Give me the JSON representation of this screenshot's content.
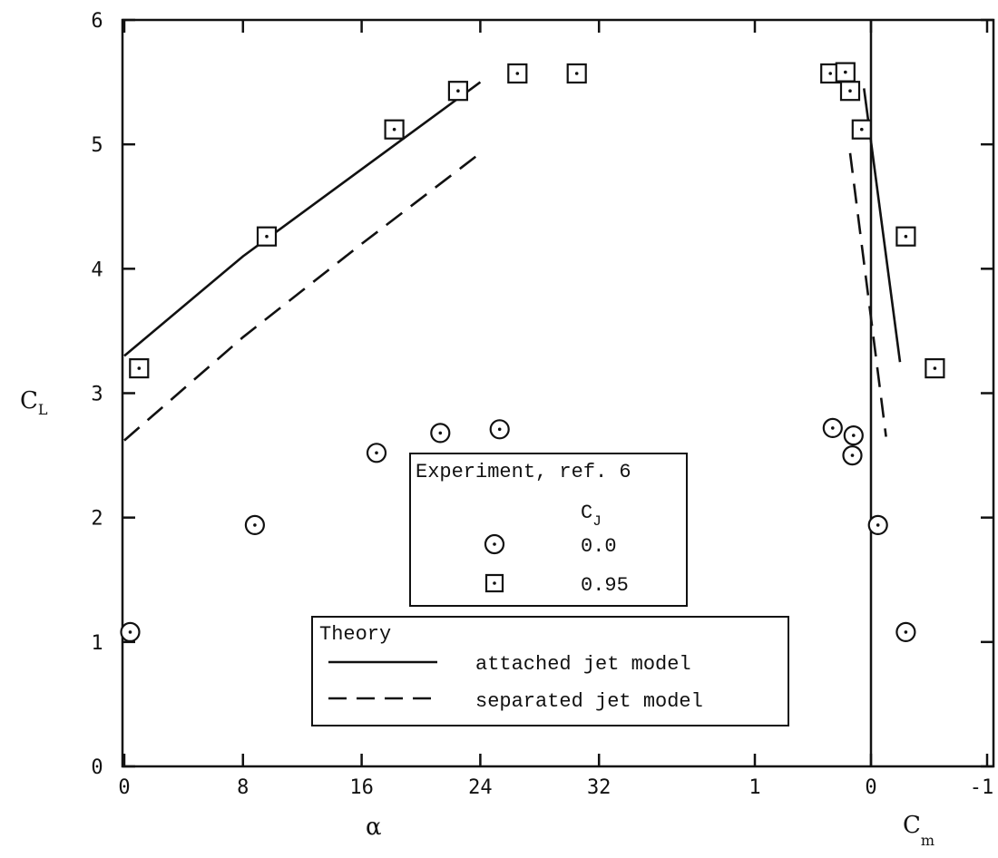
{
  "chart_data": {
    "type": "scatter",
    "y_axis": {
      "label": "C",
      "label_sub": "L",
      "range": [
        0,
        6
      ],
      "ticks": [
        "0",
        "1",
        "2",
        "3",
        "4",
        "5",
        "6"
      ]
    },
    "x_axis_alpha": {
      "label": "α",
      "range": [
        0,
        40
      ],
      "ticks": [
        "0",
        "8",
        "16",
        "24",
        "32"
      ]
    },
    "x_axis_cm": {
      "label": "C",
      "label_sub": "m",
      "range": [
        1,
        -1
      ],
      "ticks": [
        "1",
        "0",
        "-1"
      ]
    },
    "grid": false,
    "series": [
      {
        "name": "0.0",
        "panel": "alpha",
        "marker": "circle-dot",
        "points": [
          [
            0.4,
            1.08
          ],
          [
            8.8,
            1.94
          ],
          [
            17,
            2.52
          ],
          [
            21.3,
            2.68
          ],
          [
            25.3,
            2.71
          ]
        ]
      },
      {
        "name": "0.95",
        "panel": "alpha",
        "marker": "square-dot",
        "points": [
          [
            1,
            3.2
          ],
          [
            9.6,
            4.26
          ],
          [
            18.2,
            5.12
          ],
          [
            22.5,
            5.43
          ],
          [
            26.5,
            5.57
          ],
          [
            30.5,
            5.57
          ]
        ]
      },
      {
        "name": "0.0",
        "panel": "cm",
        "marker": "circle-dot",
        "points": [
          [
            0.33,
            2.72
          ],
          [
            0.15,
            2.66
          ],
          [
            0.16,
            2.5
          ],
          [
            -0.06,
            1.94
          ],
          [
            -0.3,
            1.08
          ]
        ]
      },
      {
        "name": "0.95",
        "panel": "cm",
        "marker": "square-dot",
        "points": [
          [
            0.35,
            5.57
          ],
          [
            0.22,
            5.58
          ],
          [
            0.18,
            5.43
          ],
          [
            0.08,
            5.12
          ],
          [
            -0.3,
            4.26
          ],
          [
            -0.55,
            3.2
          ]
        ]
      },
      {
        "name": "attached jet model",
        "panel": "alpha",
        "style": "solid",
        "points": [
          [
            0,
            3.3
          ],
          [
            8,
            4.1
          ],
          [
            16,
            4.8
          ],
          [
            24,
            5.5
          ]
        ]
      },
      {
        "name": "separated jet model",
        "panel": "alpha",
        "style": "dashed",
        "points": [
          [
            0,
            2.62
          ],
          [
            8,
            3.45
          ],
          [
            16,
            4.2
          ],
          [
            24,
            4.93
          ]
        ]
      },
      {
        "name": "attached jet model",
        "panel": "cm",
        "style": "solid",
        "points": [
          [
            0.06,
            5.45
          ],
          [
            -0.25,
            3.25
          ]
        ]
      },
      {
        "name": "separated jet model",
        "panel": "cm",
        "style": "dashed",
        "points": [
          [
            0.18,
            4.93
          ],
          [
            -0.13,
            2.65
          ]
        ]
      }
    ],
    "zero_line_cm": 0
  },
  "legend_experiment": {
    "title": "Experiment, ref. 6",
    "header_main": "C",
    "header_sub": "J",
    "rows": [
      {
        "marker": "circle-dot",
        "value": "0.0"
      },
      {
        "marker": "square-dot",
        "value": "0.95"
      }
    ]
  },
  "legend_theory": {
    "title": "Theory",
    "rows": [
      {
        "style": "solid",
        "label": "attached jet model"
      },
      {
        "style": "dashed",
        "label": "separated jet model"
      }
    ]
  }
}
